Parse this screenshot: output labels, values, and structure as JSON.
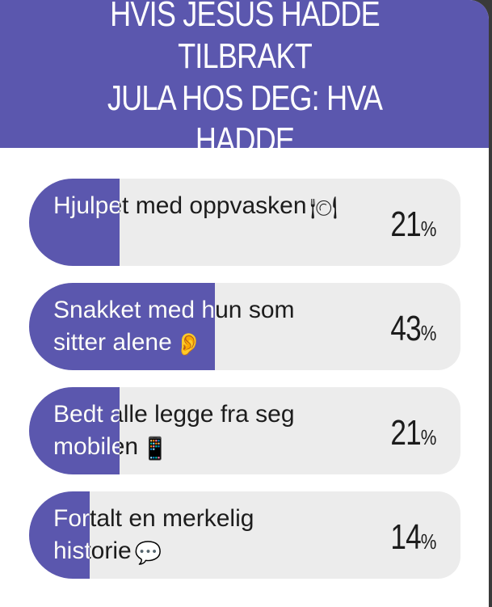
{
  "poll": {
    "question": "HVIS JESUS HADDE TILBRAKT\nJULA HOS DEG: HVA HADDE",
    "options": [
      {
        "label": "Hjulpet med oppvasken",
        "emoji": "🍽",
        "emoji_name": "plate-cutlery-icon",
        "percent": "21",
        "fraction": 0.21
      },
      {
        "label": "Snakket med hun som\nsitter alene",
        "emoji": "👂",
        "emoji_name": "ear-icon",
        "percent": "43",
        "fraction": 0.43
      },
      {
        "label": "Bedt alle legge fra seg\nmobilen",
        "emoji": "📱",
        "emoji_name": "mobile-phone-icon",
        "percent": "21",
        "fraction": 0.21
      },
      {
        "label": "Fortalt en merkelig\nhistorie",
        "emoji": "💬",
        "emoji_name": "speech-bubble-icon",
        "percent": "14",
        "fraction": 0.14
      }
    ],
    "percent_sign": "%"
  },
  "colors": {
    "accent": "#5b57ae",
    "track": "#ececec",
    "text": "#1c1c1c"
  }
}
